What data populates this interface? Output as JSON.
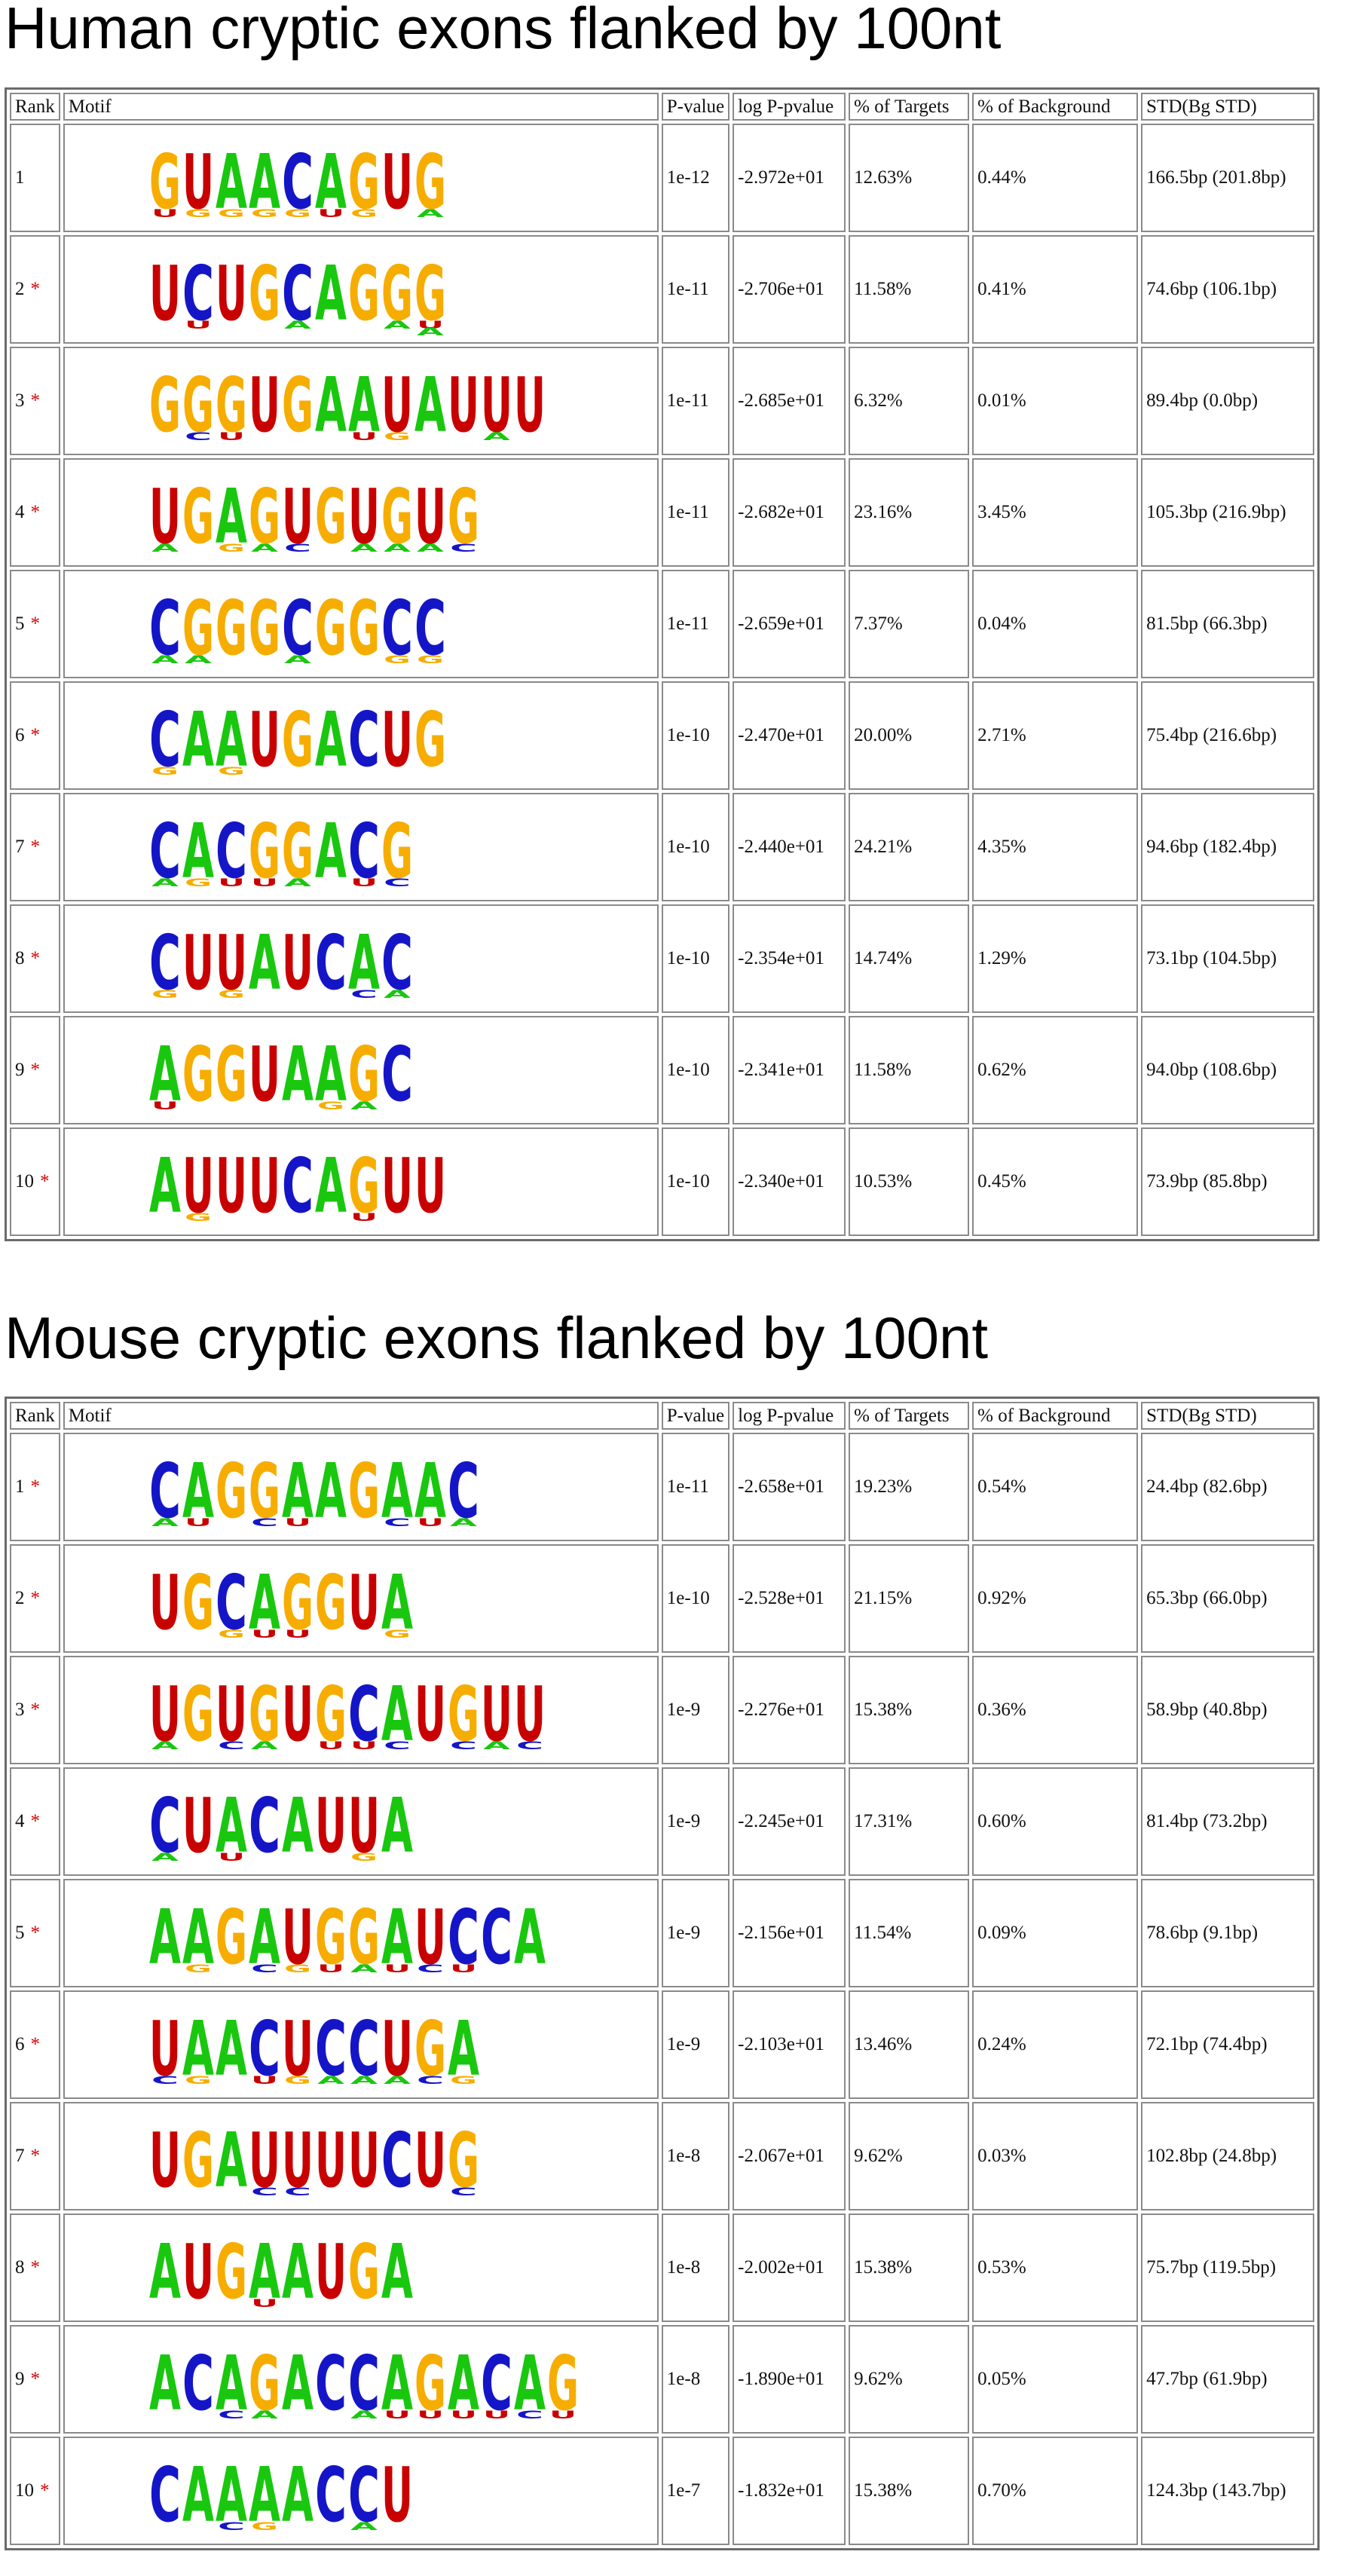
{
  "colors": {
    "A": "#19c70f",
    "C": "#1515c8",
    "G": "#f6ad00",
    "U": "#c80000",
    "star": "#d40000"
  },
  "sections": [
    {
      "title": "Human cryptic exons flanked by 100nt",
      "headers": [
        "Rank",
        "Motif",
        "P-value",
        "log P-pvalue",
        "% of Targets",
        "% of Background",
        "STD(Bg STD)"
      ],
      "rows": [
        {
          "rank": "1",
          "star": "",
          "motif": [
            [
              "G",
              "U"
            ],
            [
              "U",
              "G"
            ],
            [
              "A",
              "G"
            ],
            [
              "A",
              "G"
            ],
            [
              "C",
              "G"
            ],
            [
              "A",
              "U"
            ],
            [
              "G",
              "G"
            ],
            [
              "U",
              ""
            ],
            [
              "G",
              "A"
            ]
          ],
          "p_value": "1e-12",
          "log_p": "-2.972e+01",
          "targets": "12.63%",
          "background": "0.44%",
          "std": "166.5bp (201.8bp)"
        },
        {
          "rank": "2",
          "star": "*",
          "motif": [
            [
              "U",
              ""
            ],
            [
              "C",
              "U"
            ],
            [
              "U",
              ""
            ],
            [
              "G",
              ""
            ],
            [
              "C",
              "A"
            ],
            [
              "A",
              ""
            ],
            [
              "G",
              ""
            ],
            [
              "G",
              "A"
            ],
            [
              "G",
              "UA"
            ]
          ],
          "p_value": "1e-11",
          "log_p": "-2.706e+01",
          "targets": "11.58%",
          "background": "0.41%",
          "std": "74.6bp (106.1bp)"
        },
        {
          "rank": "3",
          "star": "*",
          "motif": [
            [
              "G",
              ""
            ],
            [
              "G",
              "C"
            ],
            [
              "G",
              "U"
            ],
            [
              "U",
              ""
            ],
            [
              "G",
              ""
            ],
            [
              "A",
              ""
            ],
            [
              "A",
              "U"
            ],
            [
              "U",
              "G"
            ],
            [
              "A",
              ""
            ],
            [
              "U",
              ""
            ],
            [
              "U",
              "A"
            ],
            [
              "U",
              ""
            ]
          ],
          "p_value": "1e-11",
          "log_p": "-2.685e+01",
          "targets": "6.32%",
          "background": "0.01%",
          "std": "89.4bp (0.0bp)"
        },
        {
          "rank": "4",
          "star": "*",
          "motif": [
            [
              "U",
              "A"
            ],
            [
              "G",
              ""
            ],
            [
              "A",
              "G"
            ],
            [
              "G",
              "A"
            ],
            [
              "U",
              "C"
            ],
            [
              "G",
              ""
            ],
            [
              "U",
              "A"
            ],
            [
              "G",
              "A"
            ],
            [
              "U",
              "A"
            ],
            [
              "G",
              "C"
            ]
          ],
          "p_value": "1e-11",
          "log_p": "-2.682e+01",
          "targets": "23.16%",
          "background": "3.45%",
          "std": "105.3bp (216.9bp)"
        },
        {
          "rank": "5",
          "star": "*",
          "motif": [
            [
              "C",
              "A"
            ],
            [
              "G",
              "A"
            ],
            [
              "G",
              ""
            ],
            [
              "G",
              ""
            ],
            [
              "C",
              "A"
            ],
            [
              "G",
              ""
            ],
            [
              "G",
              ""
            ],
            [
              "C",
              "G"
            ],
            [
              "C",
              "G"
            ]
          ],
          "p_value": "1e-11",
          "log_p": "-2.659e+01",
          "targets": "7.37%",
          "background": "0.04%",
          "std": "81.5bp (66.3bp)"
        },
        {
          "rank": "6",
          "star": "*",
          "motif": [
            [
              "C",
              "G"
            ],
            [
              "A",
              ""
            ],
            [
              "A",
              "G"
            ],
            [
              "U",
              ""
            ],
            [
              "G",
              ""
            ],
            [
              "A",
              ""
            ],
            [
              "C",
              ""
            ],
            [
              "U",
              ""
            ],
            [
              "G",
              ""
            ]
          ],
          "p_value": "1e-10",
          "log_p": "-2.470e+01",
          "targets": "20.00%",
          "background": "2.71%",
          "std": "75.4bp (216.6bp)"
        },
        {
          "rank": "7",
          "star": "*",
          "motif": [
            [
              "C",
              "A"
            ],
            [
              "A",
              "G"
            ],
            [
              "C",
              "U"
            ],
            [
              "G",
              "U"
            ],
            [
              "G",
              "A"
            ],
            [
              "A",
              ""
            ],
            [
              "C",
              "U"
            ],
            [
              "G",
              "C"
            ]
          ],
          "p_value": "1e-10",
          "log_p": "-2.440e+01",
          "targets": "24.21%",
          "background": "4.35%",
          "std": "94.6bp (182.4bp)"
        },
        {
          "rank": "8",
          "star": "*",
          "motif": [
            [
              "C",
              "G"
            ],
            [
              "U",
              ""
            ],
            [
              "U",
              "G"
            ],
            [
              "A",
              ""
            ],
            [
              "U",
              ""
            ],
            [
              "C",
              ""
            ],
            [
              "A",
              "C"
            ],
            [
              "C",
              "A"
            ]
          ],
          "p_value": "1e-10",
          "log_p": "-2.354e+01",
          "targets": "14.74%",
          "background": "1.29%",
          "std": "73.1bp (104.5bp)"
        },
        {
          "rank": "9",
          "star": "*",
          "motif": [
            [
              "A",
              "U"
            ],
            [
              "G",
              ""
            ],
            [
              "G",
              ""
            ],
            [
              "U",
              ""
            ],
            [
              "A",
              ""
            ],
            [
              "A",
              "G"
            ],
            [
              "G",
              "A"
            ],
            [
              "C",
              ""
            ]
          ],
          "p_value": "1e-10",
          "log_p": "-2.341e+01",
          "targets": "11.58%",
          "background": "0.62%",
          "std": "94.0bp (108.6bp)"
        },
        {
          "rank": "10",
          "star": "*",
          "motif": [
            [
              "A",
              ""
            ],
            [
              "U",
              "G"
            ],
            [
              "U",
              ""
            ],
            [
              "U",
              ""
            ],
            [
              "C",
              ""
            ],
            [
              "A",
              ""
            ],
            [
              "G",
              "U"
            ],
            [
              "U",
              ""
            ],
            [
              "U",
              ""
            ]
          ],
          "p_value": "1e-10",
          "log_p": "-2.340e+01",
          "targets": "10.53%",
          "background": "0.45%",
          "std": "73.9bp (85.8bp)"
        }
      ]
    },
    {
      "title": "Mouse cryptic exons flanked by 100nt",
      "headers": [
        "Rank",
        "Motif",
        "P-value",
        "log P-pvalue",
        "% of Targets",
        "% of Background",
        "STD(Bg STD)"
      ],
      "rows": [
        {
          "rank": "1",
          "star": "*",
          "motif": [
            [
              "C",
              "A"
            ],
            [
              "A",
              "U"
            ],
            [
              "G",
              ""
            ],
            [
              "G",
              "C"
            ],
            [
              "A",
              "U"
            ],
            [
              "A",
              ""
            ],
            [
              "G",
              ""
            ],
            [
              "A",
              "C"
            ],
            [
              "A",
              "U"
            ],
            [
              "C",
              "A"
            ]
          ],
          "p_value": "1e-11",
          "log_p": "-2.658e+01",
          "targets": "19.23%",
          "background": "0.54%",
          "std": "24.4bp (82.6bp)"
        },
        {
          "rank": "2",
          "star": "*",
          "motif": [
            [
              "U",
              ""
            ],
            [
              "G",
              ""
            ],
            [
              "C",
              "G"
            ],
            [
              "A",
              "U"
            ],
            [
              "G",
              "U"
            ],
            [
              "G",
              ""
            ],
            [
              "U",
              ""
            ],
            [
              "A",
              "G"
            ]
          ],
          "p_value": "1e-10",
          "log_p": "-2.528e+01",
          "targets": "21.15%",
          "background": "0.92%",
          "std": "65.3bp (66.0bp)"
        },
        {
          "rank": "3",
          "star": "*",
          "motif": [
            [
              "U",
              "A"
            ],
            [
              "G",
              ""
            ],
            [
              "U",
              "C"
            ],
            [
              "G",
              "A"
            ],
            [
              "U",
              ""
            ],
            [
              "G",
              "U"
            ],
            [
              "C",
              "U"
            ],
            [
              "A",
              "C"
            ],
            [
              "U",
              ""
            ],
            [
              "G",
              "C"
            ],
            [
              "U",
              "A"
            ],
            [
              "U",
              "C"
            ]
          ],
          "p_value": "1e-9",
          "log_p": "-2.276e+01",
          "targets": "15.38%",
          "background": "0.36%",
          "std": "58.9bp (40.8bp)"
        },
        {
          "rank": "4",
          "star": "*",
          "motif": [
            [
              "C",
              "A"
            ],
            [
              "U",
              ""
            ],
            [
              "A",
              "U"
            ],
            [
              "C",
              ""
            ],
            [
              "A",
              ""
            ],
            [
              "U",
              ""
            ],
            [
              "U",
              "G"
            ],
            [
              "A",
              ""
            ]
          ],
          "p_value": "1e-9",
          "log_p": "-2.245e+01",
          "targets": "17.31%",
          "background": "0.60%",
          "std": "81.4bp (73.2bp)"
        },
        {
          "rank": "5",
          "star": "*",
          "motif": [
            [
              "A",
              ""
            ],
            [
              "A",
              "G"
            ],
            [
              "G",
              ""
            ],
            [
              "A",
              "C"
            ],
            [
              "U",
              "G"
            ],
            [
              "G",
              "U"
            ],
            [
              "G",
              "A"
            ],
            [
              "A",
              "U"
            ],
            [
              "U",
              "C"
            ],
            [
              "C",
              "U"
            ],
            [
              "C",
              ""
            ],
            [
              "A",
              ""
            ]
          ],
          "p_value": "1e-9",
          "log_p": "-2.156e+01",
          "targets": "11.54%",
          "background": "0.09%",
          "std": "78.6bp (9.1bp)"
        },
        {
          "rank": "6",
          "star": "*",
          "motif": [
            [
              "U",
              "C"
            ],
            [
              "A",
              "G"
            ],
            [
              "A",
              ""
            ],
            [
              "C",
              "U"
            ],
            [
              "U",
              "G"
            ],
            [
              "C",
              "A"
            ],
            [
              "C",
              "A"
            ],
            [
              "U",
              "A"
            ],
            [
              "G",
              "C"
            ],
            [
              "A",
              "G"
            ]
          ],
          "p_value": "1e-9",
          "log_p": "-2.103e+01",
          "targets": "13.46%",
          "background": "0.24%",
          "std": "72.1bp (74.4bp)"
        },
        {
          "rank": "7",
          "star": "*",
          "motif": [
            [
              "U",
              ""
            ],
            [
              "G",
              ""
            ],
            [
              "A",
              ""
            ],
            [
              "U",
              "C"
            ],
            [
              "U",
              "C"
            ],
            [
              "U",
              ""
            ],
            [
              "U",
              ""
            ],
            [
              "C",
              ""
            ],
            [
              "U",
              ""
            ],
            [
              "G",
              "C"
            ]
          ],
          "p_value": "1e-8",
          "log_p": "-2.067e+01",
          "targets": "9.62%",
          "background": "0.03%",
          "std": "102.8bp (24.8bp)"
        },
        {
          "rank": "8",
          "star": "*",
          "motif": [
            [
              "A",
              ""
            ],
            [
              "U",
              ""
            ],
            [
              "G",
              ""
            ],
            [
              "A",
              "U"
            ],
            [
              "A",
              ""
            ],
            [
              "U",
              ""
            ],
            [
              "G",
              ""
            ],
            [
              "A",
              ""
            ]
          ],
          "p_value": "1e-8",
          "log_p": "-2.002e+01",
          "targets": "15.38%",
          "background": "0.53%",
          "std": "75.7bp (119.5bp)"
        },
        {
          "rank": "9",
          "star": "*",
          "motif": [
            [
              "A",
              ""
            ],
            [
              "C",
              ""
            ],
            [
              "A",
              "C"
            ],
            [
              "G",
              "A"
            ],
            [
              "A",
              ""
            ],
            [
              "C",
              ""
            ],
            [
              "C",
              "A"
            ],
            [
              "A",
              "U"
            ],
            [
              "G",
              "U"
            ],
            [
              "A",
              "U"
            ],
            [
              "C",
              "U"
            ],
            [
              "A",
              "C"
            ],
            [
              "G",
              "U"
            ]
          ],
          "p_value": "1e-8",
          "log_p": "-1.890e+01",
          "targets": "9.62%",
          "background": "0.05%",
          "std": "47.7bp (61.9bp)"
        },
        {
          "rank": "10",
          "star": "*",
          "motif": [
            [
              "C",
              ""
            ],
            [
              "A",
              ""
            ],
            [
              "A",
              "C"
            ],
            [
              "A",
              "G"
            ],
            [
              "A",
              ""
            ],
            [
              "C",
              ""
            ],
            [
              "C",
              "A"
            ],
            [
              "U",
              ""
            ]
          ],
          "p_value": "1e-7",
          "log_p": "-1.832e+01",
          "targets": "15.38%",
          "background": "0.70%",
          "std": "124.3bp (143.7bp)"
        }
      ]
    }
  ]
}
